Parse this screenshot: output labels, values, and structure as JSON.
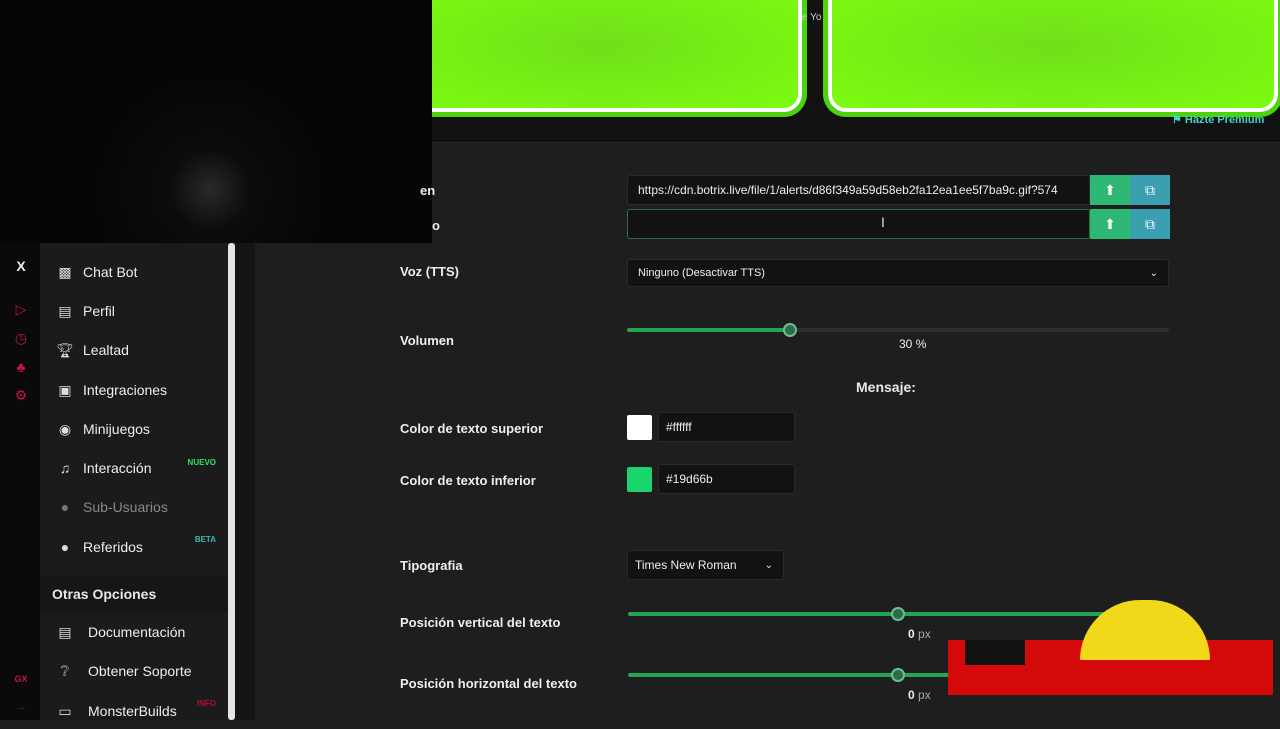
{
  "preview": {
    "partial_text": "e Yo",
    "premium_label": "Hazte Premium"
  },
  "rail": {
    "icons": [
      "x-icon",
      "play-icon",
      "clock-icon",
      "puzzle-icon",
      "gear-icon"
    ],
    "x_label": "X",
    "gx_label": "GX",
    "more_label": "..."
  },
  "sidebar": {
    "items": [
      {
        "label": "Chat Bot",
        "icon": "robot-icon"
      },
      {
        "label": "Perfil",
        "icon": "id-card-icon"
      },
      {
        "label": "Lealtad",
        "icon": "trophy-icon"
      },
      {
        "label": "Integraciones",
        "icon": "integration-icon"
      },
      {
        "label": "Minijuegos",
        "icon": "gamepad-icon"
      },
      {
        "label": "Interacción",
        "icon": "music-icon",
        "badge": "NUEVO"
      },
      {
        "label": "Sub-Usuarios",
        "icon": "users-icon",
        "disabled": true
      },
      {
        "label": "Referidos",
        "icon": "user-friends-icon",
        "badge": "BETA"
      }
    ],
    "section": "Otras Opciones",
    "other": [
      {
        "label": "Documentación",
        "icon": "scroll-icon"
      },
      {
        "label": "Obtener Soporte",
        "icon": "question-icon"
      },
      {
        "label": "MonsterBuilds",
        "icon": "laptop-icon",
        "badge": "INFO"
      }
    ]
  },
  "form": {
    "image_label": "en",
    "image_url": "https://cdn.botrix.live/file/1/alerts/d86f349a59d58eb2fa12ea1ee5f7ba9c.gif?574",
    "sound_label": "o",
    "sound_url": "",
    "voice_label": "Voz (TTS)",
    "voice_value": "Ninguno (Desactivar TTS)",
    "volume_label": "Volumen",
    "volume_value": "30",
    "volume_unit": "%",
    "volume_percent": 30,
    "message_heading": "Mensaje:",
    "top_color_label": "Color de texto superior",
    "top_color": "#ffffff",
    "bottom_color_label": "Color de texto inferior",
    "bottom_color": "#19d66b",
    "font_label": "Tipografia",
    "font_value": "Times New Roman",
    "vpos_label": "Posición vertical del texto",
    "vpos_value": "0",
    "vpos_unit": "px",
    "hpos_label": "Posición horizontal del texto",
    "hpos_value": "0",
    "hpos_unit": "px"
  },
  "colors": {
    "accent": "#22a555",
    "upload_btn": "#2fb873",
    "gallery_btn": "#3a9fb0",
    "rail_icon": "#c2183f"
  }
}
